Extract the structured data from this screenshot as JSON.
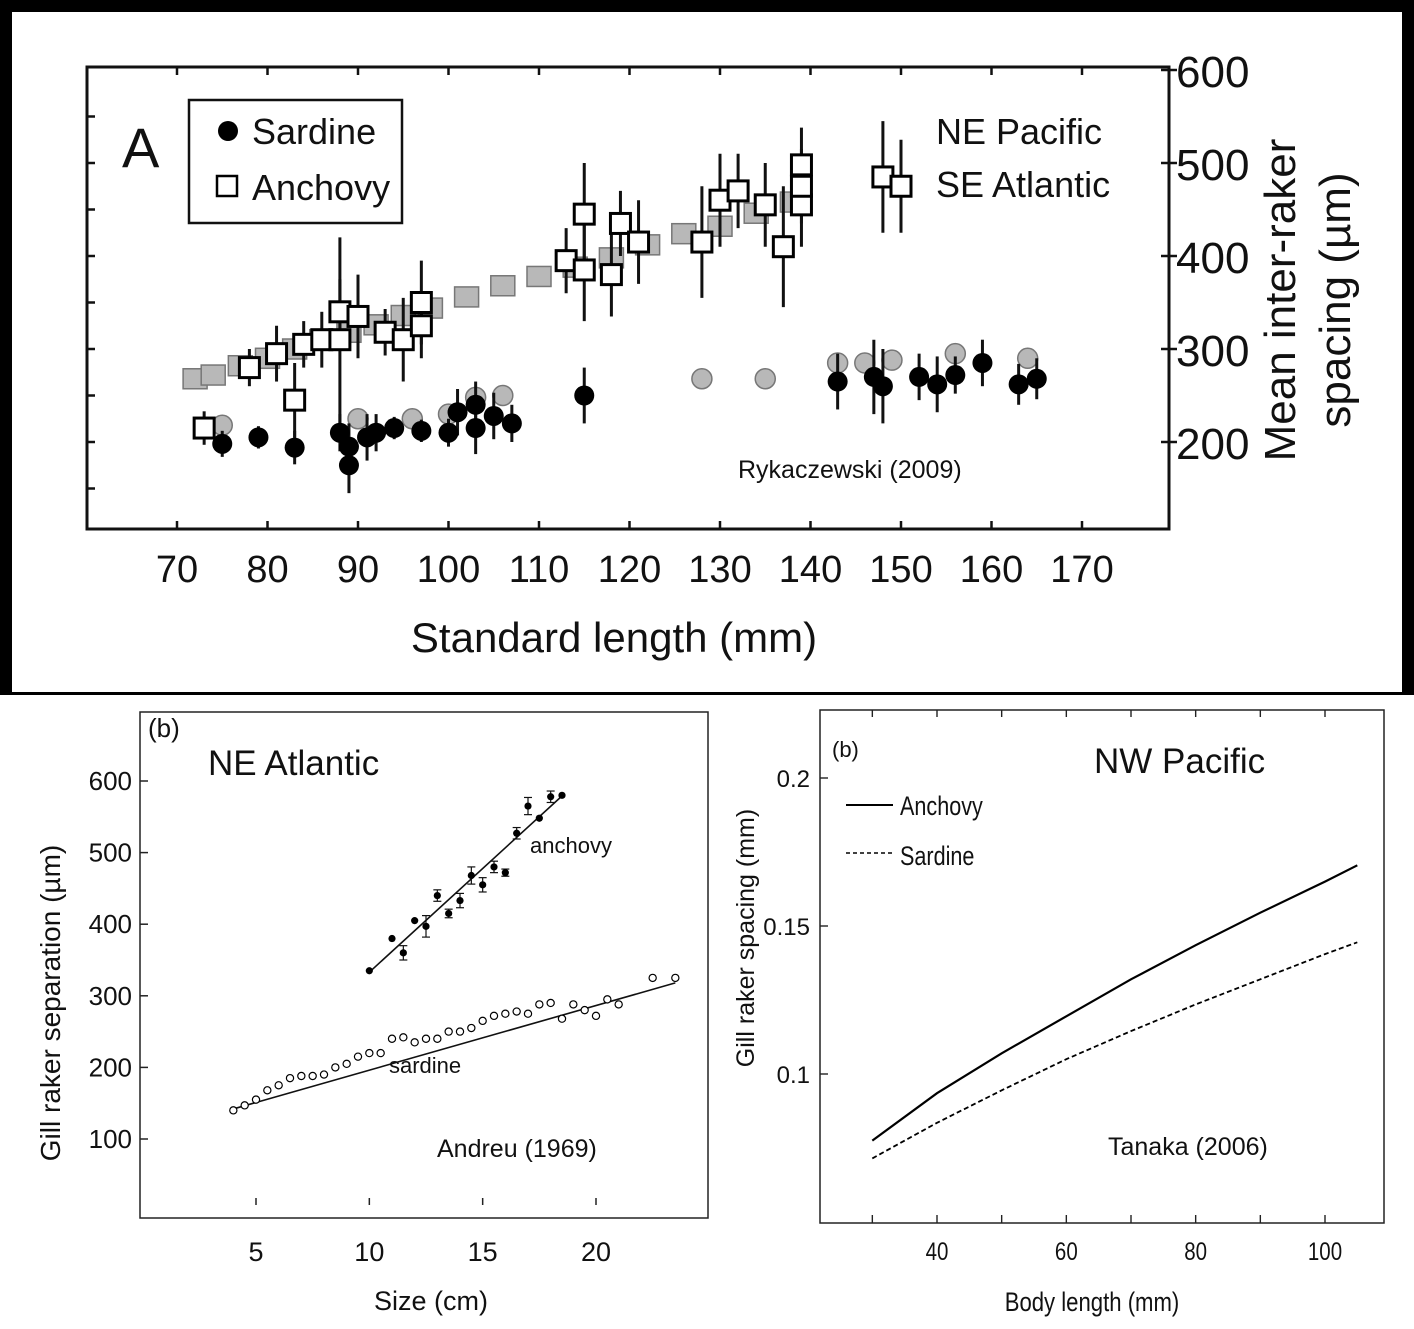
{
  "chart_data": [
    {
      "type": "scatter",
      "panel_label": "A",
      "title": "",
      "xlabel": "Standard length (mm)",
      "ylabel": "Mean inter-raker spacing (µm)",
      "xlim": [
        70,
        170
      ],
      "ylim": [
        100,
        600
      ],
      "x_ticks": [
        70,
        80,
        90,
        100,
        110,
        120,
        130,
        140,
        150,
        160,
        170
      ],
      "y_ticks": [
        200,
        300,
        400,
        500,
        600
      ],
      "legend_position": "top-left",
      "annotations": [
        "NE Pacific",
        "SE Atlantic",
        "Rykaczewski (2009)"
      ],
      "series": [
        {
          "name": "Anchovy",
          "marker": "open-square",
          "color": "#000000",
          "points": [
            [
              73,
              215,
              18
            ],
            [
              78,
              280,
              20
            ],
            [
              81,
              295,
              30
            ],
            [
              83,
              245,
              40
            ],
            [
              84,
              305,
              25
            ],
            [
              86,
              310,
              30
            ],
            [
              88,
              310,
              110
            ],
            [
              88,
              340,
              35
            ],
            [
              90,
              335,
              45
            ],
            [
              93,
              318,
              25
            ],
            [
              95,
              310,
              45
            ],
            [
              97,
              325,
              35
            ],
            [
              97,
              350,
              45
            ],
            [
              113,
              395,
              35
            ],
            [
              115,
              445,
              55
            ],
            [
              115,
              385,
              55
            ],
            [
              118,
              380,
              45
            ],
            [
              119,
              435,
              35
            ],
            [
              121,
              415,
              45
            ],
            [
              128,
              415,
              60
            ],
            [
              130,
              460,
              50
            ],
            [
              132,
              470,
              40
            ],
            [
              135,
              455,
              45
            ],
            [
              137,
              410,
              65
            ],
            [
              139,
              455,
              45
            ],
            [
              139,
              475,
              40
            ],
            [
              139,
              498,
              40
            ],
            [
              148,
              485,
              60
            ],
            [
              150,
              475,
              50
            ]
          ]
        },
        {
          "name": "Sardine",
          "marker": "filled-circle",
          "color": "#000000",
          "points": [
            [
              75,
              198,
              14
            ],
            [
              79,
              205,
              12
            ],
            [
              83,
              194,
              18
            ],
            [
              88,
              210,
              20
            ],
            [
              89,
              195,
              25
            ],
            [
              89,
              175,
              30
            ],
            [
              91,
              205,
              25
            ],
            [
              92,
              210,
              20
            ],
            [
              94,
              215,
              12
            ],
            [
              97,
              212,
              12
            ],
            [
              100,
              210,
              15
            ],
            [
              101,
              232,
              25
            ],
            [
              103,
              240,
              25
            ],
            [
              103,
              215,
              28
            ],
            [
              105,
              228,
              25
            ],
            [
              107,
              220,
              20
            ],
            [
              115,
              250,
              30
            ],
            [
              143,
              265,
              30
            ],
            [
              147,
              270,
              40
            ],
            [
              148,
              260,
              40
            ],
            [
              152,
              270,
              25
            ],
            [
              154,
              262,
              30
            ],
            [
              156,
              272,
              20
            ],
            [
              159,
              285,
              25
            ],
            [
              163,
              262,
              22
            ],
            [
              165,
              268,
              22
            ]
          ]
        },
        {
          "name": "",
          "marker": "grey-square",
          "color": "#b8b8b8",
          "points": [
            [
              72,
              268
            ],
            [
              74,
              272
            ],
            [
              77,
              282
            ],
            [
              80,
              290
            ],
            [
              83,
              300
            ],
            [
              86,
              310
            ],
            [
              89,
              318
            ],
            [
              92,
              326
            ],
            [
              95,
              336
            ],
            [
              98,
              344
            ],
            [
              102,
              356
            ],
            [
              106,
              368
            ],
            [
              110,
              378
            ],
            [
              114,
              388
            ],
            [
              118,
              398
            ],
            [
              122,
              412
            ],
            [
              126,
              424
            ],
            [
              130,
              432
            ],
            [
              134,
              446
            ],
            [
              138,
              458
            ]
          ]
        },
        {
          "name": "",
          "marker": "grey-circle",
          "color": "#b8b8b8",
          "points": [
            [
              75,
              218
            ],
            [
              90,
              225
            ],
            [
              96,
              225
            ],
            [
              100,
              230
            ],
            [
              103,
              248
            ],
            [
              106,
              250
            ],
            [
              128,
              268
            ],
            [
              135,
              268
            ],
            [
              143,
              285
            ],
            [
              146,
              285
            ],
            [
              149,
              288
            ],
            [
              156,
              295
            ],
            [
              164,
              290
            ]
          ]
        }
      ]
    },
    {
      "type": "scatter",
      "panel_label": "(b)",
      "title": "",
      "xlabel": "Size (cm)",
      "ylabel": "Gill raker separation (µm)",
      "xlim": [
        0,
        25
      ],
      "ylim": [
        0,
        650
      ],
      "x_ticks": [
        5,
        10,
        15,
        20
      ],
      "y_ticks": [
        100,
        200,
        300,
        400,
        500,
        600
      ],
      "annotations": [
        "NE Atlantic",
        "Andreu (1969)"
      ],
      "series": [
        {
          "name": "anchovy",
          "marker": "filled-circle",
          "line": {
            "x": [
              10,
              18.6
            ],
            "y": [
              333,
              582
            ]
          },
          "points": [
            [
              10,
              335,
              0
            ],
            [
              11,
              380,
              0
            ],
            [
              11.5,
              360,
              10
            ],
            [
              12,
              405,
              0
            ],
            [
              12.5,
              397,
              15
            ],
            [
              13,
              440,
              8
            ],
            [
              13.5,
              415,
              6
            ],
            [
              14,
              433,
              10
            ],
            [
              14.5,
              468,
              12
            ],
            [
              15,
              455,
              10
            ],
            [
              15.5,
              480,
              8
            ],
            [
              16,
              472,
              5
            ],
            [
              16.5,
              527,
              8
            ],
            [
              17,
              565,
              12
            ],
            [
              17.5,
              548,
              0
            ],
            [
              18,
              578,
              8
            ],
            [
              18.5,
              580,
              0
            ]
          ]
        },
        {
          "name": "sardine",
          "marker": "open-circle",
          "line": {
            "x": [
              4,
              23.5
            ],
            "y": [
              142,
              318
            ]
          },
          "points": [
            [
              4,
              140
            ],
            [
              4.5,
              147
            ],
            [
              5,
              155
            ],
            [
              5.5,
              168
            ],
            [
              6,
              175
            ],
            [
              6.5,
              185
            ],
            [
              7,
              188
            ],
            [
              7.5,
              188
            ],
            [
              8,
              190
            ],
            [
              8.5,
              200
            ],
            [
              9,
              205
            ],
            [
              9.5,
              215
            ],
            [
              10,
              220
            ],
            [
              10.5,
              220
            ],
            [
              11,
              240
            ],
            [
              11.5,
              242
            ],
            [
              12,
              235
            ],
            [
              12.5,
              240
            ],
            [
              13,
              240
            ],
            [
              13.5,
              250
            ],
            [
              14,
              250
            ],
            [
              14.5,
              255
            ],
            [
              15,
              265
            ],
            [
              15.5,
              272
            ],
            [
              16,
              275
            ],
            [
              16.5,
              278
            ],
            [
              17,
              275
            ],
            [
              17.5,
              288
            ],
            [
              18,
              290
            ],
            [
              18.5,
              268
            ],
            [
              19,
              288
            ],
            [
              19.5,
              280
            ],
            [
              20,
              272
            ],
            [
              20.5,
              295
            ],
            [
              21,
              288
            ],
            [
              22.5,
              325
            ],
            [
              23.5,
              325
            ]
          ]
        }
      ]
    },
    {
      "type": "line",
      "panel_label": "(b)",
      "title": "",
      "xlabel": "Body length (mm)",
      "ylabel": "Gill raker spacing (mm)",
      "xlim": [
        22,
        110
      ],
      "ylim": [
        0.055,
        0.225
      ],
      "x_ticks": [
        40,
        60,
        80,
        100
      ],
      "y_ticks": [
        0.1,
        0.15,
        0.2
      ],
      "y_tick_labels": [
        "0.1",
        "0.15",
        "0.2"
      ],
      "legend_position": "top-left",
      "annotations": [
        "NW Pacific",
        "Tanaka (2006)"
      ],
      "series": [
        {
          "name": "Anchovy",
          "style": "solid",
          "x": [
            30,
            40,
            50,
            60,
            70,
            80,
            90,
            100,
            105
          ],
          "y": [
            0.0775,
            0.0935,
            0.107,
            0.1195,
            0.132,
            0.1435,
            0.1545,
            0.165,
            0.1705
          ]
        },
        {
          "name": "Sardine",
          "style": "dashed",
          "x": [
            30,
            40,
            50,
            60,
            70,
            80,
            90,
            100,
            105
          ],
          "y": [
            0.0715,
            0.0835,
            0.0945,
            0.105,
            0.1145,
            0.1235,
            0.132,
            0.1405,
            0.1445
          ]
        }
      ]
    }
  ]
}
